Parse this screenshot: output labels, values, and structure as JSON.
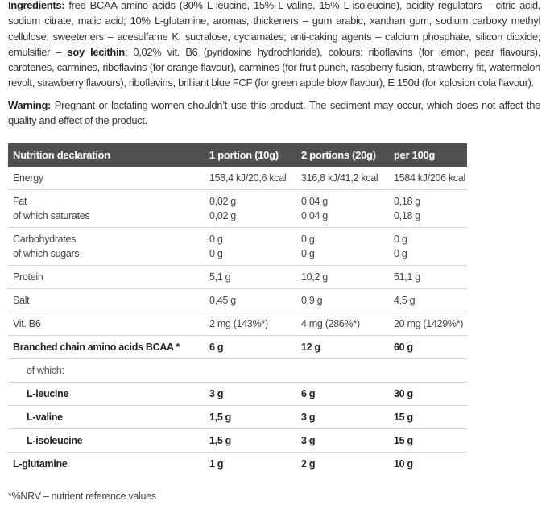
{
  "ingredients": {
    "label": "Ingredients:",
    "text1": " free BCAA amino acids (30% L-leucine, 15% L-valine, 15% L-isoleucine), acidity regulators – citric acid, sodium citrate, malic acid; 10% L-glutamine, aromas,  thickeners – gum arabic, xanthan gum, sodium carboxy methyl cellulose; sweeteners – acesulfame K, sucralose, cyclamates; anti-caking agents – calcium phosphate, silicon dioxide; emulsifier – ",
    "bold": "soy lecithin",
    "text2": "; 0,02% vit. B6 (pyridoxine hydrochloride), colours: riboflavins (for lemon, pear flavours), carotenes, carmines, riboflavins (for orange flavour), carmines (for fruit punch, raspberry fusion, strawberry fit, watermelon revolt, strawberry flavours), riboflavins, brilliant blue FCF (for green apple blow flavour), E 150d  (for xplosion cola flavour)."
  },
  "warning": {
    "label": "Warning:",
    "text": " Pregnant or lactating women shouldn’t use this product. The sediment may occur, which does not affect the quality and effect of the product."
  },
  "table": {
    "header_color": "#505050",
    "headers": [
      "Nutrition declaration",
      "1 portion (10g)",
      "2 portions (20g)",
      "per 100g"
    ],
    "rows": [
      {
        "cells": [
          [
            "Energy"
          ],
          [
            "158,4 kJ/20,6 kcal"
          ],
          [
            "316,8 kJ/41,2 kcal"
          ],
          [
            "1584 kJ/206 kcal"
          ]
        ]
      },
      {
        "cells": [
          [
            "Fat",
            "of which saturates"
          ],
          [
            "0,02 g",
            "0,02 g"
          ],
          [
            "0,04 g",
            "0,04 g"
          ],
          [
            "0,18 g",
            "0,18 g"
          ]
        ]
      },
      {
        "cells": [
          [
            "Carbohydrates",
            "of which sugars"
          ],
          [
            "0 g",
            "0 g"
          ],
          [
            "0 g",
            "0 g"
          ],
          [
            "0 g",
            "0 g"
          ]
        ]
      },
      {
        "cells": [
          [
            "Protein"
          ],
          [
            "5,1 g"
          ],
          [
            "10,2 g"
          ],
          [
            "51,1 g"
          ]
        ]
      },
      {
        "cells": [
          [
            "Salt"
          ],
          [
            "0,45 g"
          ],
          [
            "0,9 g"
          ],
          [
            "4,5 g"
          ]
        ]
      },
      {
        "cells": [
          [
            "Vit. B6"
          ],
          [
            "2 mg (143%*)"
          ],
          [
            "4 mg (286%*)"
          ],
          [
            "20 mg (1429%*)"
          ]
        ]
      },
      {
        "bold": true,
        "cells": [
          [
            "Branched chain amino acids BCAA *"
          ],
          [
            "6 g"
          ],
          [
            "12 g"
          ],
          [
            "60 g"
          ]
        ]
      },
      {
        "indent": true,
        "sub": true,
        "cells": [
          [
            "of which:"
          ],
          [
            ""
          ],
          [
            ""
          ],
          [
            ""
          ]
        ]
      },
      {
        "bold": true,
        "indent": true,
        "cells": [
          [
            "L-leucine"
          ],
          [
            "3 g"
          ],
          [
            "6 g"
          ],
          [
            "30 g"
          ]
        ]
      },
      {
        "bold": true,
        "indent": true,
        "cells": [
          [
            "L-valine"
          ],
          [
            "1,5 g"
          ],
          [
            "3 g"
          ],
          [
            "15 g"
          ]
        ]
      },
      {
        "bold": true,
        "indent": true,
        "cells": [
          [
            "L-isoleucine"
          ],
          [
            "1,5 g"
          ],
          [
            "3 g"
          ],
          [
            "15 g"
          ]
        ]
      },
      {
        "bold": true,
        "cells": [
          [
            "L-glutamine"
          ],
          [
            "1 g"
          ],
          [
            "2 g"
          ],
          [
            "10 g"
          ]
        ]
      }
    ]
  },
  "footnote": "*%NRV – nutrient reference values"
}
